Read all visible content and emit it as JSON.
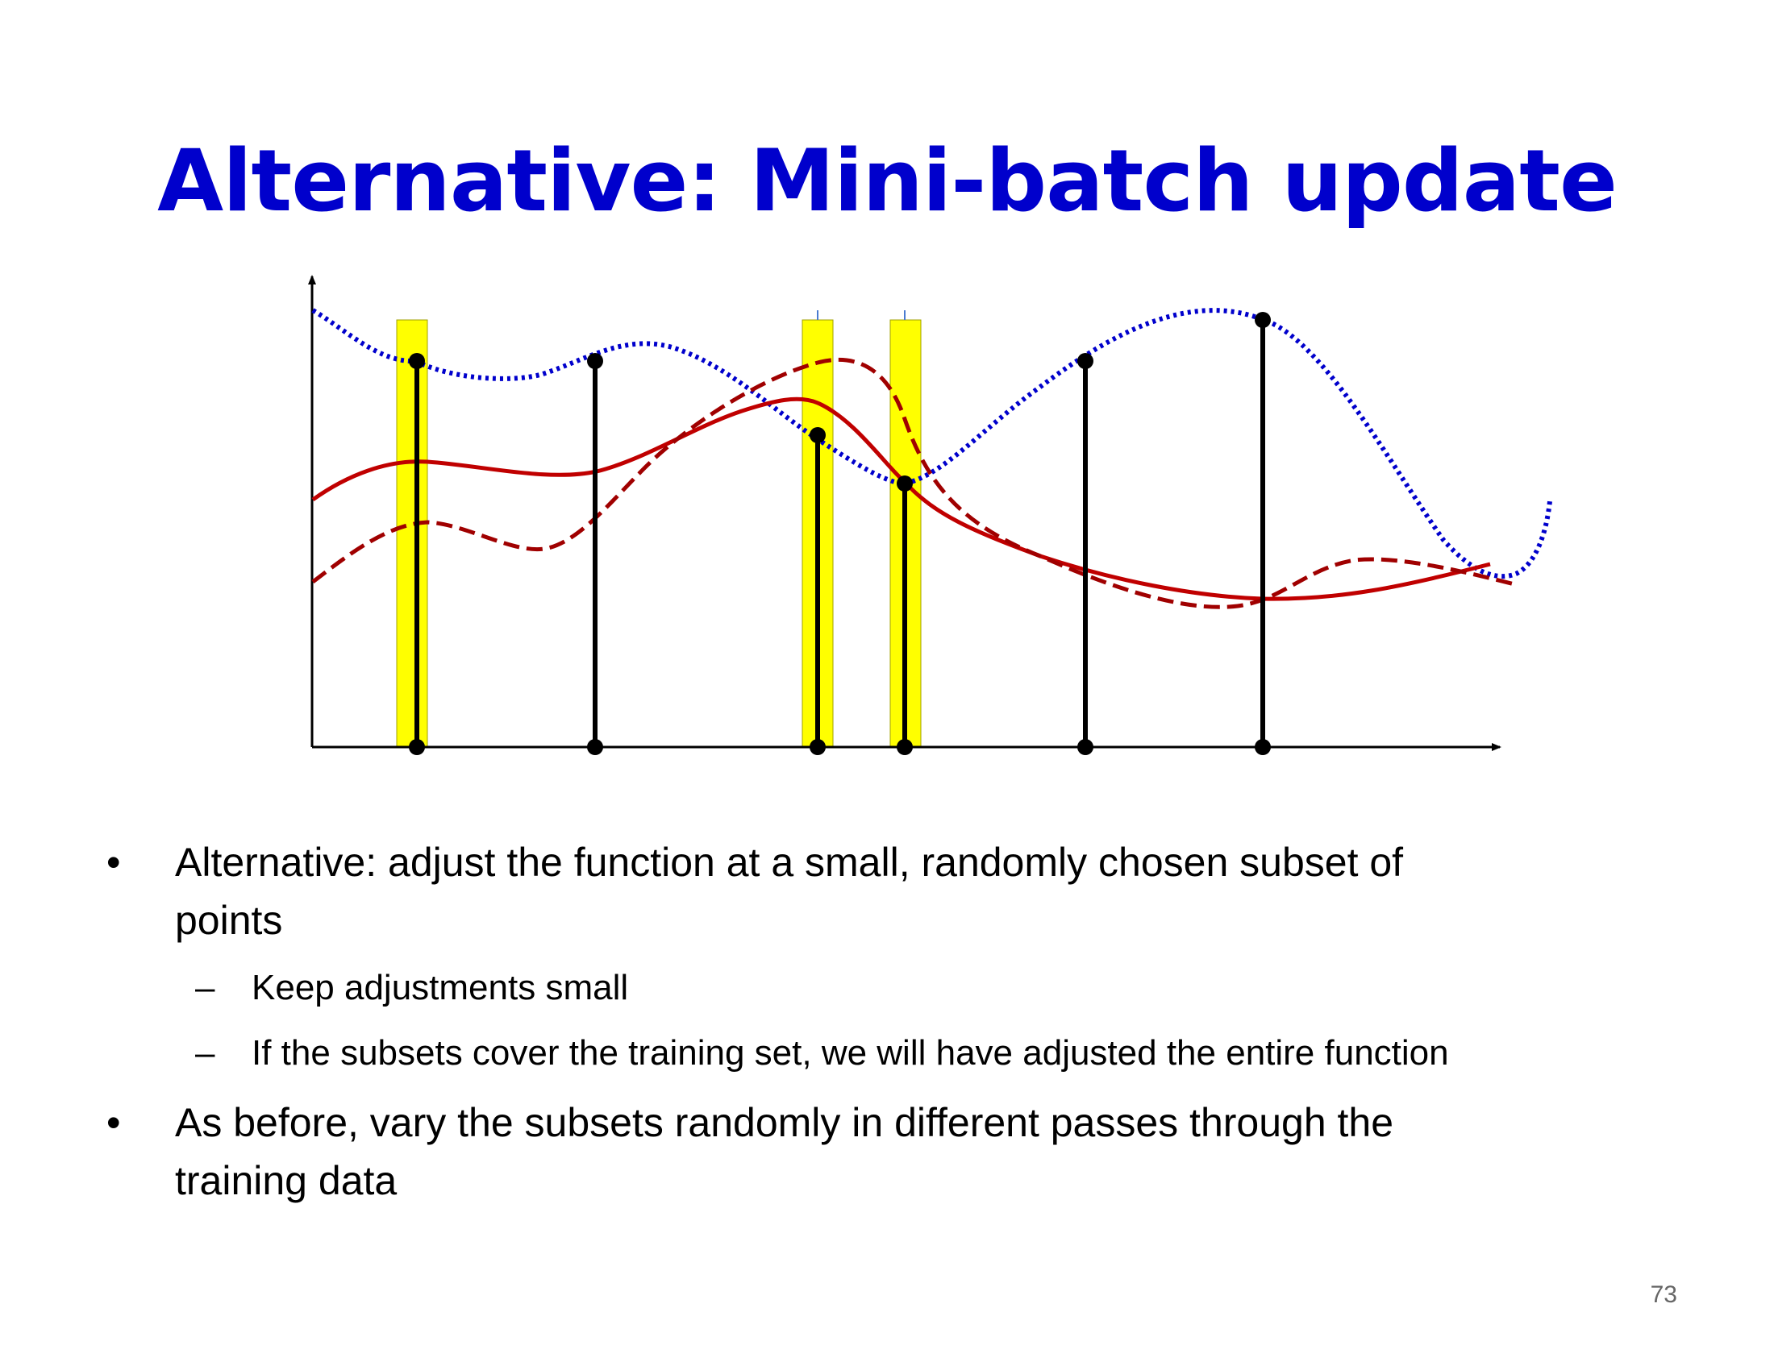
{
  "slide": {
    "title": "Alternative: Mini-batch update",
    "bullets": [
      {
        "lines": [
          "Alternative: adjust the function at a small, randomly chosen subset of",
          "points"
        ],
        "sub": [
          "Keep adjustments small",
          "If the subsets cover the training set, we will have adjusted the entire function"
        ]
      },
      {
        "lines": [
          "As before, vary the subsets randomly in different passes through the",
          "training data"
        ],
        "sub": []
      }
    ],
    "bullet_marker": "•",
    "sub_marker": "–",
    "page_number": "73"
  },
  "colors": {
    "title": "#0000cc",
    "target_curve": "#0000cc",
    "current_curve": "#c00000",
    "updated_curve": "#a00000",
    "highlight": "#ffff00",
    "stem": "#000000"
  },
  "diagram": {
    "samples": [
      {
        "id": "s1",
        "highlighted": true
      },
      {
        "id": "s2",
        "highlighted": false
      },
      {
        "id": "s3",
        "highlighted": true
      },
      {
        "id": "s4",
        "highlighted": true
      },
      {
        "id": "s5",
        "highlighted": false
      },
      {
        "id": "s6",
        "highlighted": false
      }
    ],
    "curves": [
      {
        "id": "target",
        "style": "dotted",
        "color_key": "target_curve"
      },
      {
        "id": "current",
        "style": "solid",
        "color_key": "current_curve"
      },
      {
        "id": "updated",
        "style": "dashed",
        "color_key": "updated_curve"
      }
    ]
  }
}
